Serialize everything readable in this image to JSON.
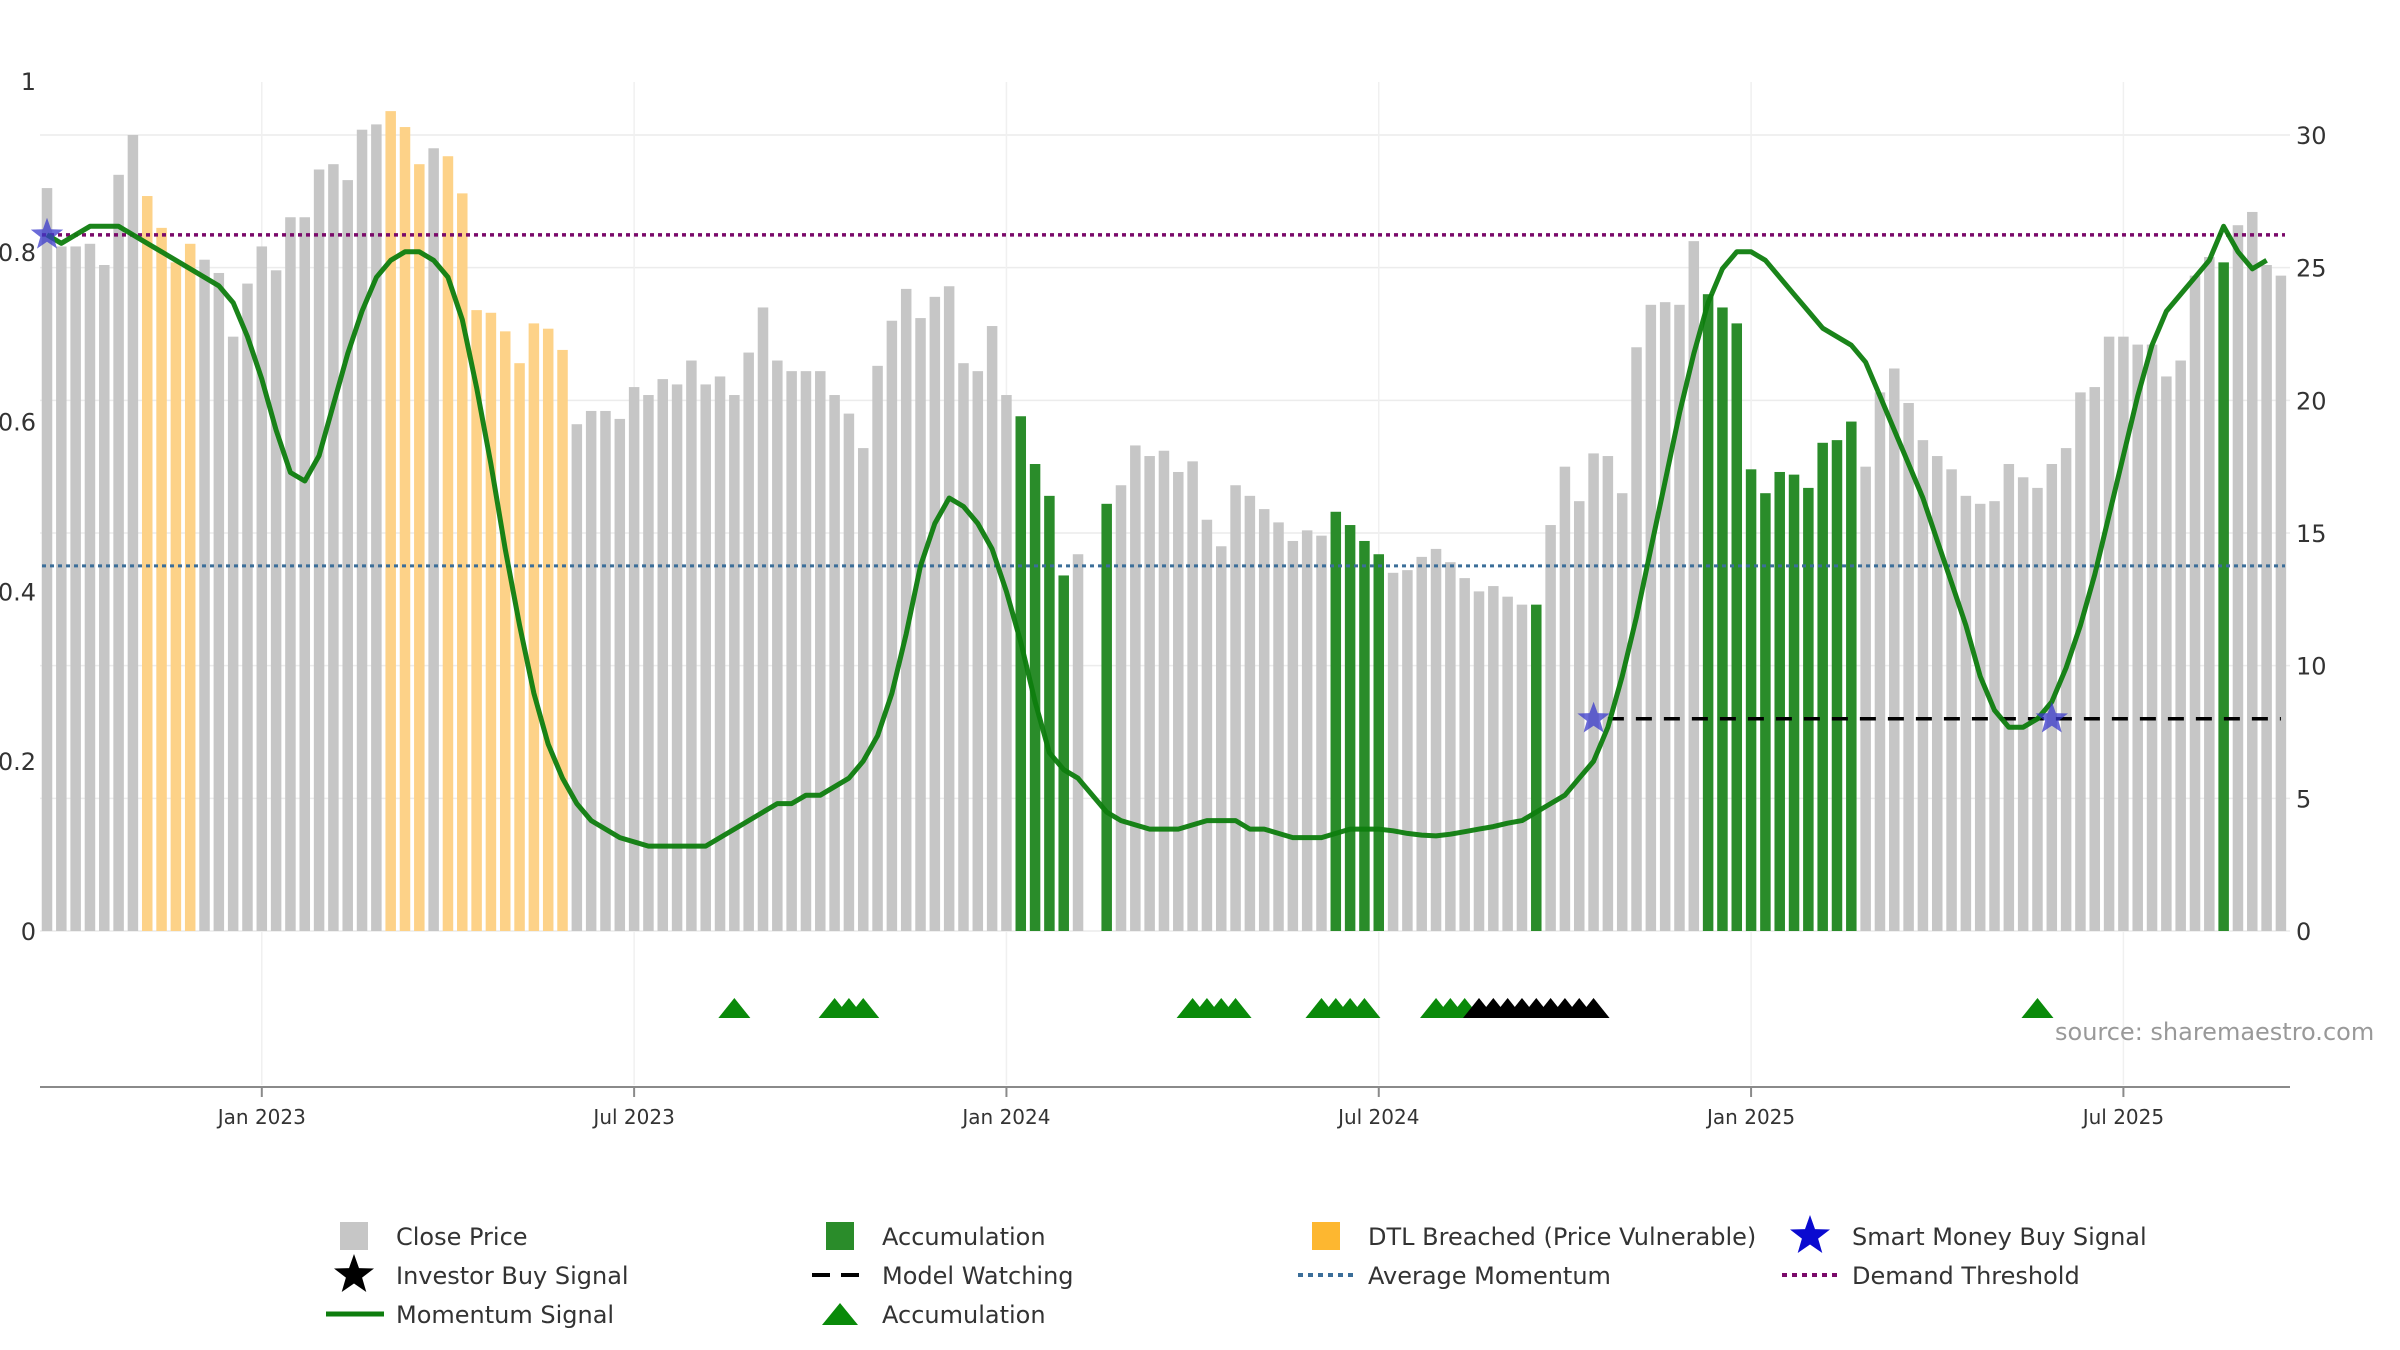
{
  "chart_data": {
    "type": "bar",
    "source_text": "source: sharemaestro.com",
    "left_axis": {
      "range": [
        0,
        1
      ],
      "ticks": [
        0,
        0.2,
        0.4,
        0.6,
        0.8
      ],
      "tick_labels": [
        "0",
        "0.2",
        "0.4",
        "0.6",
        "0.8"
      ],
      "top_label": "1"
    },
    "right_axis": {
      "range": [
        0,
        30
      ],
      "ticks": [
        0,
        5,
        10,
        15,
        20,
        25,
        30
      ],
      "tick_labels": [
        "0",
        "5",
        "10",
        "15",
        "20",
        "25",
        "30"
      ]
    },
    "x_axis": {
      "ticks": [
        "Jan 2023",
        "Jul 2023",
        "Jan 2024",
        "Jul 2024",
        "Jan 2025",
        "Jul 2025"
      ],
      "tick_week_index": [
        15,
        41,
        67,
        93,
        119,
        145
      ]
    },
    "colors": {
      "close": "#c6c6c6",
      "accumulation": "#2a8c2a",
      "dtl": "#fdd288",
      "momentum": "#0e7d0e",
      "average": "#3b6e99",
      "demand": "#7a0a6a",
      "smart_money": "#3a3acb",
      "investor": "#000000",
      "model": "#000000",
      "triangle": "#0a8a0a"
    },
    "close_price": [
      28.0,
      25.8,
      25.8,
      25.9,
      25.1,
      28.5,
      30.0,
      27.7,
      26.5,
      25.2,
      25.9,
      25.3,
      24.8,
      22.4,
      24.4,
      25.8,
      24.9,
      26.9,
      26.9,
      28.7,
      28.9,
      28.3,
      30.2,
      30.4,
      30.9,
      30.3,
      28.9,
      29.5,
      29.2,
      27.8,
      23.4,
      23.3,
      22.6,
      21.4,
      22.9,
      22.7,
      21.9,
      19.1,
      19.6,
      19.6,
      19.3,
      20.5,
      20.2,
      20.8,
      20.6,
      21.5,
      20.6,
      20.9,
      20.2,
      21.8,
      23.5,
      21.5,
      21.1,
      21.1,
      21.1,
      20.2,
      19.5,
      18.2,
      21.3,
      23.0,
      24.2,
      23.1,
      23.9,
      24.3,
      21.4,
      21.1,
      22.8,
      20.2,
      19.4,
      17.6,
      16.4,
      13.4,
      14.2,
      null,
      16.1,
      16.8,
      18.3,
      17.9,
      18.1,
      17.3,
      17.7,
      15.5,
      14.5,
      16.8,
      16.4,
      15.9,
      15.4,
      14.7,
      15.1,
      14.9,
      15.8,
      15.3,
      14.7,
      14.2,
      13.5,
      13.6,
      14.1,
      14.4,
      13.9,
      13.3,
      12.8,
      13.0,
      12.6,
      12.3,
      12.3,
      15.3,
      17.5,
      16.2,
      18.0,
      17.9,
      16.5,
      22.0,
      23.6,
      23.7,
      23.6,
      26.0,
      24.0,
      23.5,
      22.9,
      17.4,
      16.5,
      17.3,
      17.2,
      16.7,
      18.4,
      18.5,
      19.2,
      17.5,
      20.3,
      21.2,
      19.9,
      18.5,
      17.9,
      17.4,
      16.4,
      16.1,
      16.2,
      17.6,
      17.1,
      16.7,
      17.6,
      18.2,
      20.3,
      20.5,
      22.4,
      22.4,
      22.1,
      22.1,
      20.9,
      21.5,
      24.7,
      25.4,
      25.2,
      26.6,
      27.1,
      25.1,
      24.7
    ],
    "bar_kind": "c......dddd.....c.....c.ddd.ddddddddd...............................aaaa.aa...............aaaa..........a...........aaaaaaaaaaa.........................a......................ad...c..dd..",
    "momentum_signal": [
      0.82,
      0.81,
      0.82,
      0.83,
      0.83,
      0.83,
      0.82,
      0.81,
      0.8,
      0.79,
      0.78,
      0.77,
      0.76,
      0.74,
      0.7,
      0.65,
      0.59,
      0.54,
      0.53,
      0.56,
      0.62,
      0.68,
      0.73,
      0.77,
      0.79,
      0.8,
      0.8,
      0.79,
      0.77,
      0.72,
      0.64,
      0.55,
      0.45,
      0.36,
      0.28,
      0.22,
      0.18,
      0.15,
      0.13,
      0.12,
      0.11,
      0.105,
      0.1,
      0.1,
      0.1,
      0.1,
      0.1,
      0.11,
      0.12,
      0.13,
      0.14,
      0.15,
      0.15,
      0.16,
      0.16,
      0.17,
      0.18,
      0.2,
      0.23,
      0.28,
      0.35,
      0.43,
      0.48,
      0.51,
      0.5,
      0.48,
      0.45,
      0.4,
      0.34,
      0.27,
      0.21,
      0.19,
      0.18,
      0.16,
      0.14,
      0.13,
      0.125,
      0.12,
      0.12,
      0.12,
      0.125,
      0.13,
      0.13,
      0.13,
      0.12,
      0.12,
      0.115,
      0.11,
      0.11,
      0.11,
      0.115,
      0.12,
      0.12,
      0.12,
      0.118,
      0.115,
      0.113,
      0.112,
      0.114,
      0.117,
      0.12,
      0.123,
      0.127,
      0.13,
      0.14,
      0.15,
      0.16,
      0.18,
      0.2,
      0.24,
      0.3,
      0.37,
      0.45,
      0.53,
      0.61,
      0.68,
      0.74,
      0.78,
      0.8,
      0.8,
      0.79,
      0.77,
      0.75,
      0.73,
      0.71,
      0.7,
      0.69,
      0.67,
      0.63,
      0.59,
      0.55,
      0.51,
      0.46,
      0.41,
      0.36,
      0.3,
      0.26,
      0.24,
      0.24,
      0.25,
      0.27,
      0.31,
      0.36,
      0.42,
      0.49,
      0.56,
      0.63,
      0.69,
      0.73,
      0.75,
      0.77,
      0.79,
      0.83,
      0.8,
      0.78,
      0.79
    ],
    "average_momentum": 0.43,
    "demand_threshold": 0.82,
    "smart_money_buy_signals": [
      {
        "week": 0,
        "value": 0.82
      },
      {
        "week": 108,
        "value": 0.25
      },
      {
        "week": 140,
        "value": 0.25
      }
    ],
    "model_watching": {
      "start_week": 109,
      "end_week": 156,
      "value": 0.25
    },
    "accumulation_triangles": [
      48,
      55,
      56,
      57,
      80,
      81,
      82,
      83,
      89,
      90,
      91,
      92,
      97,
      98,
      99
    ],
    "investor_buy_triangles": [
      100,
      101,
      102,
      103,
      104,
      105,
      106,
      107,
      108
    ],
    "late_triangles": [
      139
    ],
    "legend": [
      {
        "label": "Close Price",
        "symbol": "square",
        "color": "#c6c6c6"
      },
      {
        "label": "Accumulation",
        "symbol": "square",
        "color": "#2a8c2a"
      },
      {
        "label": "DTL Breached (Price Vulnerable)",
        "symbol": "square",
        "color": "#fdb730"
      },
      {
        "label": "Smart Money Buy Signal",
        "symbol": "star",
        "color": "#0a0ad0"
      },
      {
        "label": "Investor Buy Signal",
        "symbol": "star",
        "color": "#000000"
      },
      {
        "label": "Model Watching",
        "symbol": "dash",
        "color": "#000000"
      },
      {
        "label": "Average Momentum",
        "symbol": "dot",
        "color": "#3b6e99"
      },
      {
        "label": "Demand Threshold",
        "symbol": "dot",
        "color": "#7a0a6a"
      },
      {
        "label": "Momentum Signal",
        "symbol": "line",
        "color": "#0e7d0e"
      },
      {
        "label": "Accumulation",
        "symbol": "triangle",
        "color": "#0a8a0a"
      }
    ]
  }
}
